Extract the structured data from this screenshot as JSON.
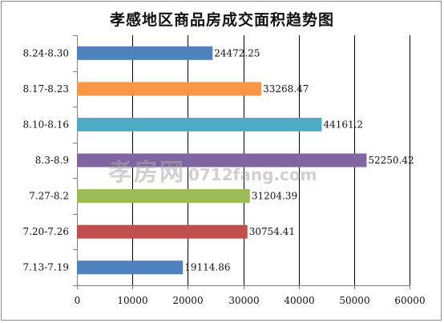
{
  "chart_data": {
    "type": "bar",
    "orientation": "horizontal",
    "title": "孝感地区商品房成交面积趋势图",
    "categories": [
      "8.24-8.30",
      "8.17-8.23",
      "8.10-8.16",
      "8.3-8.9",
      "7.27-8.2",
      "7.20-7.26",
      "7.13-7.19"
    ],
    "values": [
      24472.25,
      33268.47,
      44161.2,
      52250.42,
      31204.39,
      30754.41,
      19114.86
    ],
    "value_labels": [
      "24472.25",
      "33268.47",
      "44161.2",
      "52250.42",
      "31204.39",
      "30754.41",
      "19114.86"
    ],
    "bar_colors": [
      "#4f81bd",
      "#f79646",
      "#4bacc6",
      "#8064a2",
      "#9bbb59",
      "#c0504d",
      "#4f81bd"
    ],
    "xlim": [
      0,
      60000
    ],
    "xticks": [
      0,
      10000,
      20000,
      30000,
      40000,
      50000,
      60000
    ],
    "xtick_labels": [
      "0",
      "10000",
      "20000",
      "30000",
      "40000",
      "50000",
      "60000"
    ],
    "grid": "vertical",
    "legend": "none"
  },
  "watermark": {
    "cn": "孝房网",
    "en": "0712fang.com"
  }
}
